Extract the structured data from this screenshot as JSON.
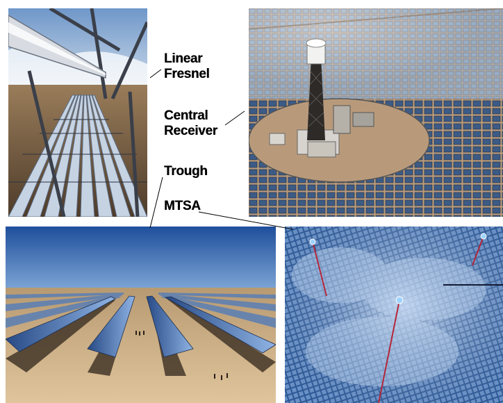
{
  "labels": {
    "fresnel": {
      "line1": "Linear",
      "line2": "Fresnel"
    },
    "central": {
      "line1": "Central",
      "line2": "Receiver"
    },
    "trough": "Trough",
    "mtsa": "MTSA"
  },
  "photos": [
    {
      "id": "linear-fresnel-photo",
      "subject": "Linear Fresnel reflector rows under an elevated receiver pipe"
    },
    {
      "id": "central-receiver-photo",
      "subject": "Central receiver tower surrounded by heliostat field"
    },
    {
      "id": "trough-photo",
      "subject": "Parabolic trough collector rows in the desert"
    },
    {
      "id": "mtsa-photo",
      "subject": "Rendered multi-tower heliostat field with blue mirrors"
    }
  ],
  "colors": {
    "sky_blue": "#3f73b8",
    "desert_tan": "#c9a57a",
    "mirror_blue": "#5f8fd0",
    "leader_line": "#000000"
  }
}
